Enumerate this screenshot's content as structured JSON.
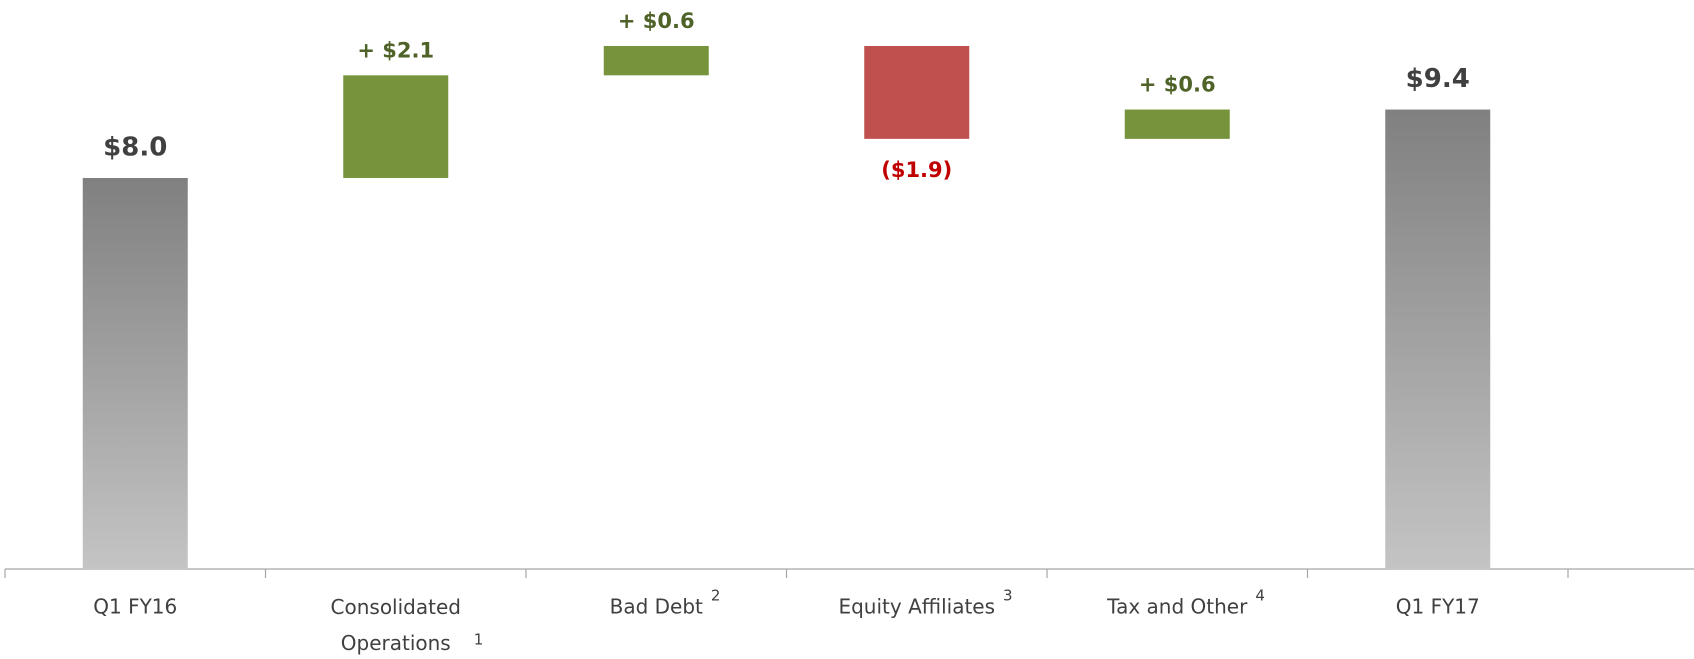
{
  "chart_data": {
    "type": "waterfall",
    "categories": [
      "Q1 FY16",
      "Consolidated Operations",
      "Bad Debt",
      "Equity Affiliates",
      "Tax and Other",
      "Q1 FY17"
    ],
    "footnotes": [
      null,
      "1",
      "2",
      "3",
      "4",
      null
    ],
    "measure": [
      "total",
      "relative",
      "relative",
      "relative",
      "relative",
      "total"
    ],
    "values": [
      8.0,
      2.1,
      0.6,
      -1.9,
      0.6,
      9.4
    ],
    "value_labels": [
      "$8.0",
      "+ $2.1",
      "+ $0.6",
      "($1.9)",
      "+ $0.6",
      "$9.4"
    ],
    "colors": {
      "increase": "#77933c",
      "decrease": "#c0504d",
      "total": "#808080"
    },
    "label_colors": {
      "increase": "#4f6228",
      "decrease": "#c00000",
      "total": "#404040"
    }
  }
}
